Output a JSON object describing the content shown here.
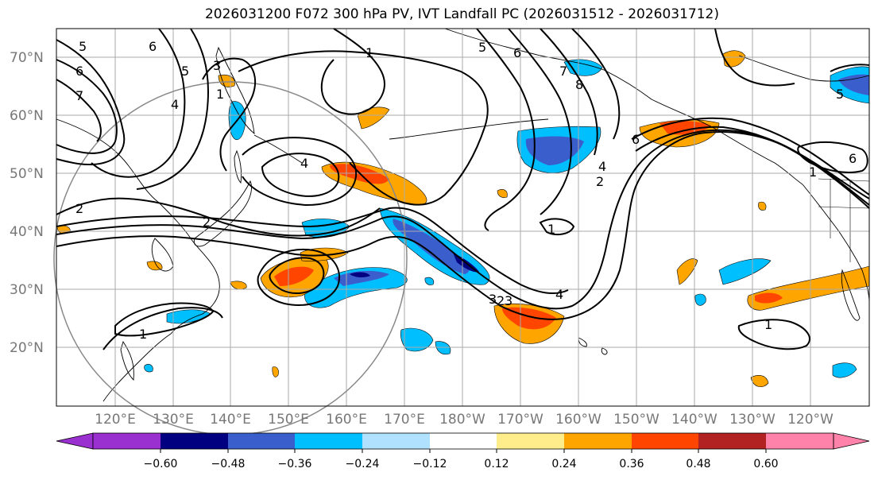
{
  "title": "2026031200 F072 300 hPa PV, IVT Landfall PC (2026031512 - 2026031712)",
  "lat_labels": [
    "70°N",
    "60°N",
    "50°N",
    "40°N",
    "30°N",
    "20°N"
  ],
  "lon_labels": [
    "120°E",
    "130°E",
    "140°E",
    "150°E",
    "160°E",
    "170°E",
    "180°W",
    "170°W",
    "160°W",
    "150°W",
    "140°W",
    "130°W",
    "120°W"
  ],
  "contour_labels": [
    "5",
    "6",
    "7",
    "6",
    "5",
    "4",
    "3",
    "1",
    "4",
    "2",
    "2",
    "1",
    "5",
    "6",
    "7",
    "8",
    "1",
    "3",
    "4",
    "2",
    "6",
    "1",
    "2",
    "3",
    "4",
    "1",
    "5",
    "6",
    "1"
  ],
  "colorbar": {
    "ticks": [
      "−0.60",
      "−0.48",
      "−0.36",
      "−0.24",
      "−0.12",
      "0.12",
      "0.24",
      "0.36",
      "0.48",
      "0.60"
    ],
    "colors": [
      "#9b30d0",
      "#000080",
      "#3a5fcd",
      "#00bfff",
      "#b0e2ff",
      "#ffffff",
      "#ffec8b",
      "#ffa500",
      "#ff4500",
      "#b22222",
      "#ff82ab"
    ]
  },
  "colors": {
    "coast": "#000000",
    "contour": "#000000",
    "grid": "#aaaaaa",
    "circle": "#888888"
  }
}
